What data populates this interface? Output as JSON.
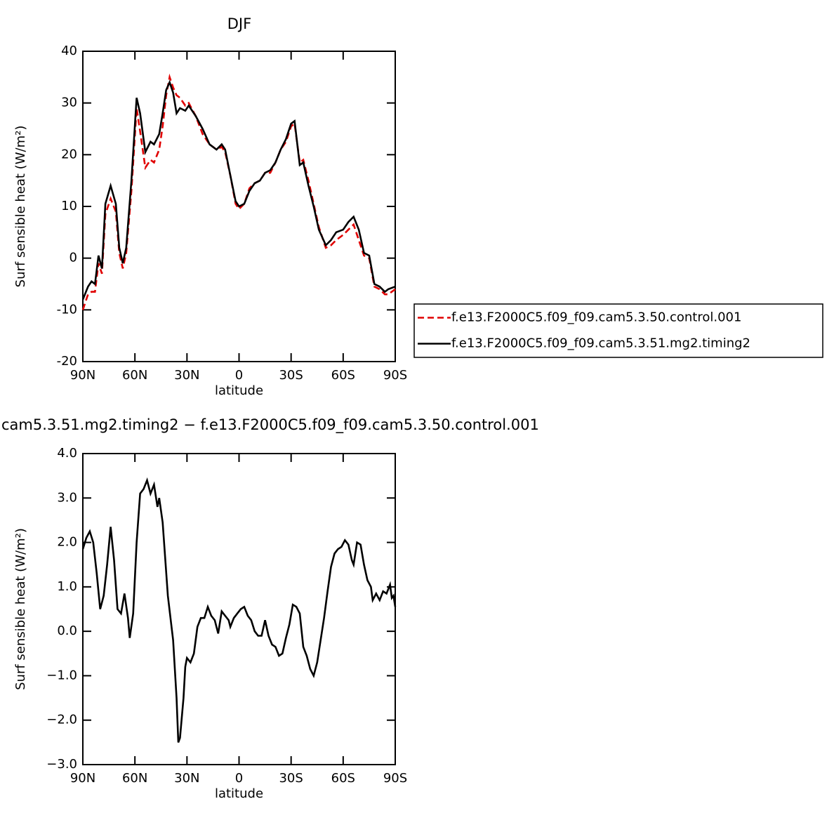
{
  "chart_data": [
    {
      "type": "line",
      "title": "DJF",
      "xlabel": "latitude",
      "ylabel": "Surf sensible heat (W/m²)",
      "xlim": [
        90,
        -90
      ],
      "ylim": [
        -20,
        40
      ],
      "xticks": [
        {
          "value": 90,
          "label": "90N"
        },
        {
          "value": 60,
          "label": "60N"
        },
        {
          "value": 30,
          "label": "30N"
        },
        0,
        {
          "value": -30,
          "label": "30S"
        },
        {
          "value": -60,
          "label": "60S"
        },
        {
          "value": -90,
          "label": "90S"
        }
      ],
      "yticks": [
        -20,
        -10,
        0,
        10,
        20,
        30,
        40
      ],
      "legend": "right",
      "x": [
        90,
        87,
        85,
        83,
        81,
        79,
        77,
        74,
        71,
        69,
        67,
        65,
        62,
        59,
        57,
        54,
        51,
        49,
        46,
        44,
        42,
        40,
        38,
        36,
        34,
        31,
        29,
        25,
        21,
        17,
        13,
        10,
        8,
        5,
        2,
        0,
        -3,
        -6,
        -9,
        -12,
        -15,
        -18,
        -21,
        -24,
        -27,
        -30,
        -32,
        -35,
        -37,
        -40,
        -43,
        -46,
        -50,
        -53,
        -56,
        -60,
        -63,
        -66,
        -69,
        -72,
        -75,
        -78,
        -81,
        -84,
        -86,
        -90
      ],
      "series": [
        {
          "name": "f.e13.F2000C5.f09_f09.cam5.3.50.control.001",
          "color": "#e00000",
          "style": "dashed",
          "values": [
            -10,
            -7,
            -6.5,
            -6.5,
            -1,
            -3,
            8.5,
            11.5,
            9,
            1,
            -2,
            1,
            13,
            29,
            24.5,
            17.5,
            19,
            18.5,
            21,
            25.5,
            31.5,
            35,
            33,
            31.5,
            31,
            29.5,
            30,
            27.5,
            24,
            22,
            21,
            21.5,
            20.5,
            16,
            10.5,
            9.5,
            10.5,
            13.5,
            14.5,
            15,
            16.5,
            16.5,
            18.5,
            21,
            22.5,
            25.5,
            26,
            18.5,
            19,
            15,
            10.5,
            6,
            2,
            2.5,
            3.5,
            4.5,
            5.5,
            6.5,
            3.5,
            0.5,
            0,
            -5.5,
            -6,
            -7,
            -7,
            -6
          ]
        },
        {
          "name": "f.e13.F2000C5.f09_f09.cam5.3.51.mg2.timing2",
          "color": "#000000",
          "style": "solid",
          "values": [
            -8,
            -5.5,
            -4.5,
            -5,
            0.5,
            -2,
            10.5,
            14,
            10.5,
            2,
            -1,
            2,
            15,
            31,
            28,
            20.5,
            22.5,
            22,
            24,
            28,
            32.5,
            34,
            32,
            28,
            29,
            28.5,
            29.5,
            27.5,
            25,
            22,
            21,
            22,
            21,
            16,
            11,
            10,
            10.5,
            13,
            14.5,
            15,
            16.5,
            17,
            18.5,
            21,
            23,
            26,
            26.5,
            18,
            18.5,
            14,
            10,
            5.5,
            2.5,
            3.5,
            5,
            5.5,
            7,
            8,
            5.5,
            1,
            0.5,
            -5,
            -5.5,
            -6.5,
            -6,
            -5.5
          ]
        }
      ]
    },
    {
      "type": "line",
      "title": "cam5.3.51.mg2.timing2 − f.e13.F2000C5.f09_f09.cam5.3.50.control.001",
      "xlabel": "latitude",
      "ylabel": "Surf sensible heat (W/m²)",
      "xlim": [
        90,
        -90
      ],
      "ylim": [
        -3,
        4
      ],
      "xticks": [
        {
          "value": 90,
          "label": "90N"
        },
        {
          "value": 60,
          "label": "60N"
        },
        {
          "value": 30,
          "label": "30N"
        },
        0,
        {
          "value": -30,
          "label": "30S"
        },
        {
          "value": -60,
          "label": "60S"
        },
        {
          "value": -90,
          "label": "90S"
        }
      ],
      "yticks": [
        {
          "value": -3,
          "label": "−3.0"
        },
        {
          "value": -2,
          "label": "−2.0"
        },
        {
          "value": -1,
          "label": "−1.0"
        },
        {
          "value": 0,
          "label": "0.0"
        },
        {
          "value": 1,
          "label": "1.0"
        },
        {
          "value": 2,
          "label": "2.0"
        },
        {
          "value": 3,
          "label": "3.0"
        },
        {
          "value": 4,
          "label": "4.0"
        }
      ],
      "x": [
        90,
        88,
        86,
        84,
        82,
        80,
        78,
        76,
        74,
        72,
        70,
        68,
        66,
        64,
        63,
        61,
        59,
        57,
        55,
        53,
        51,
        49,
        47,
        46,
        44,
        41,
        38,
        36,
        35,
        34,
        32,
        31,
        30,
        28,
        26,
        24,
        22,
        20,
        18,
        16,
        14,
        12,
        10,
        8,
        6,
        5,
        3,
        1,
        -1,
        -3,
        -5,
        -7,
        -9,
        -11,
        -13,
        -15,
        -17,
        -19,
        -21,
        -23,
        -25,
        -27,
        -29,
        -31,
        -33,
        -35,
        -37,
        -39,
        -41,
        -43,
        -45,
        -47,
        -49,
        -51,
        -53,
        -55,
        -57,
        -59,
        -61,
        -63,
        -65,
        -66,
        -68,
        -70,
        -72,
        -74,
        -76,
        -77,
        -79,
        -81,
        -83,
        -85,
        -87,
        -88,
        -89,
        -90
      ],
      "series": [
        {
          "color": "#000000",
          "style": "solid",
          "values": [
            1.85,
            2.1,
            2.25,
            2.0,
            1.3,
            0.5,
            0.8,
            1.5,
            2.35,
            1.6,
            0.5,
            0.4,
            0.85,
            0.3,
            -0.15,
            0.4,
            2.0,
            3.1,
            3.2,
            3.4,
            3.1,
            3.3,
            2.8,
            3.0,
            2.45,
            0.8,
            -0.2,
            -1.5,
            -2.5,
            -2.4,
            -1.5,
            -0.8,
            -0.6,
            -0.7,
            -0.5,
            0.1,
            0.3,
            0.3,
            0.55,
            0.35,
            0.25,
            -0.05,
            0.45,
            0.35,
            0.25,
            0.1,
            0.3,
            0.4,
            0.5,
            0.55,
            0.35,
            0.25,
            0.0,
            -0.1,
            -0.1,
            0.25,
            -0.1,
            -0.3,
            -0.35,
            -0.55,
            -0.5,
            -0.15,
            0.15,
            0.6,
            0.55,
            0.4,
            -0.35,
            -0.55,
            -0.85,
            -1.0,
            -0.7,
            -0.2,
            0.3,
            0.9,
            1.45,
            1.75,
            1.85,
            1.9,
            2.05,
            1.95,
            1.6,
            1.5,
            2.0,
            1.95,
            1.5,
            1.15,
            1.0,
            0.7,
            0.85,
            0.7,
            0.9,
            0.85,
            1.05,
            0.75,
            0.8,
            0.55
          ]
        }
      ]
    }
  ]
}
